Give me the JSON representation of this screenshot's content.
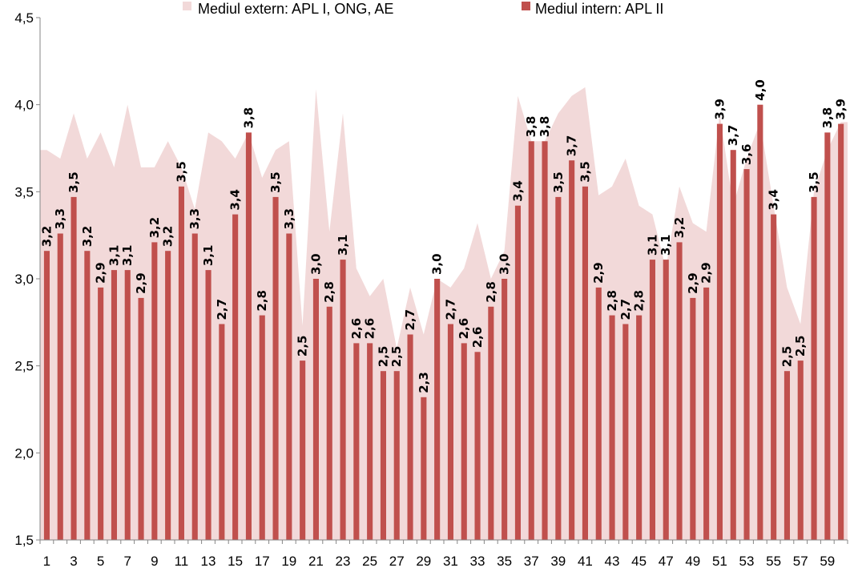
{
  "chart_data": {
    "type": "bar",
    "x": [
      1,
      2,
      3,
      4,
      5,
      6,
      7,
      8,
      9,
      10,
      11,
      12,
      13,
      14,
      15,
      16,
      17,
      18,
      19,
      20,
      21,
      22,
      23,
      24,
      25,
      26,
      27,
      28,
      29,
      30,
      31,
      32,
      33,
      34,
      35,
      36,
      37,
      38,
      39,
      40,
      41,
      42,
      43,
      44,
      45,
      46,
      47,
      48,
      49,
      50,
      51,
      52,
      53,
      54,
      55,
      56,
      57,
      58,
      59,
      60
    ],
    "x_tick_labels": [
      "1",
      "3",
      "5",
      "7",
      "9",
      "11",
      "13",
      "15",
      "17",
      "19",
      "21",
      "23",
      "25",
      "27",
      "29",
      "31",
      "33",
      "35",
      "37",
      "39",
      "41",
      "43",
      "45",
      "47",
      "49",
      "51",
      "53",
      "55",
      "57",
      "59"
    ],
    "y_tick_labels": [
      "1,5",
      "2,0",
      "2,5",
      "3,0",
      "3,5",
      "4,0",
      "4,5"
    ],
    "y_ticks": [
      1.5,
      2.0,
      2.5,
      3.0,
      3.5,
      4.0,
      4.5
    ],
    "ylim": [
      1.5,
      4.5
    ],
    "legend_position": "top",
    "series": [
      {
        "name": "Mediul extern: APL I, ONG, AE",
        "type": "area",
        "color": "#f2d9d9",
        "values": [
          3.74,
          3.69,
          3.95,
          3.69,
          3.84,
          3.64,
          4.0,
          3.64,
          3.64,
          3.79,
          3.64,
          3.4,
          3.84,
          3.79,
          3.69,
          3.84,
          3.58,
          3.74,
          3.79,
          2.73,
          4.09,
          3.27,
          3.95,
          3.06,
          2.9,
          3.0,
          2.6,
          2.95,
          2.68,
          3.0,
          2.95,
          3.06,
          3.32,
          3.0,
          3.16,
          4.05,
          3.79,
          3.79,
          3.95,
          4.05,
          4.1,
          3.48,
          3.53,
          3.69,
          3.42,
          3.37,
          3.06,
          3.53,
          3.32,
          3.27,
          3.95,
          3.42,
          3.69,
          3.9,
          3.42,
          2.95,
          2.74,
          3.5,
          3.74,
          3.9
        ]
      },
      {
        "name": "Mediul intern: APL II",
        "type": "bar",
        "color": "#c0504d",
        "values": [
          3.16,
          3.26,
          3.47,
          3.16,
          2.95,
          3.05,
          3.05,
          2.89,
          3.21,
          3.16,
          3.53,
          3.26,
          3.05,
          2.74,
          3.37,
          3.84,
          2.79,
          3.47,
          3.26,
          2.53,
          3.0,
          2.84,
          3.11,
          2.63,
          2.63,
          2.47,
          2.47,
          2.68,
          2.32,
          3.0,
          2.74,
          2.63,
          2.58,
          2.84,
          3.0,
          3.42,
          3.79,
          3.79,
          3.47,
          3.68,
          3.53,
          2.95,
          2.79,
          2.74,
          2.79,
          3.11,
          3.11,
          3.21,
          2.89,
          2.95,
          3.89,
          3.74,
          3.63,
          4.0,
          3.37,
          2.47,
          2.53,
          3.47,
          3.84,
          3.89
        ],
        "labels": [
          "3,2",
          "3,3",
          "3,5",
          "3,2",
          "2,9",
          "3,1",
          "3,1",
          "2,9",
          "3,2",
          "3,2",
          "3,5",
          "3,3",
          "3,1",
          "2,7",
          "3,4",
          "3,8",
          "2,8",
          "3,5",
          "3,3",
          "2,5",
          "3,0",
          "2,8",
          "3,1",
          "2,6",
          "2,6",
          "2,5",
          "2,5",
          "2,7",
          "2,3",
          "3,0",
          "2,7",
          "2,6",
          "2,6",
          "2,8",
          "3,0",
          "3,4",
          "3,8",
          "3,8",
          "3,5",
          "3,7",
          "3,5",
          "2,9",
          "2,8",
          "2,7",
          "2,8",
          "3,1",
          "3,1",
          "3,2",
          "2,9",
          "2,9",
          "3,9",
          "3,7",
          "3,6",
          "4,0",
          "3,4",
          "2,5",
          "2,5",
          "3,5",
          "3,8",
          "3,9"
        ]
      }
    ]
  }
}
